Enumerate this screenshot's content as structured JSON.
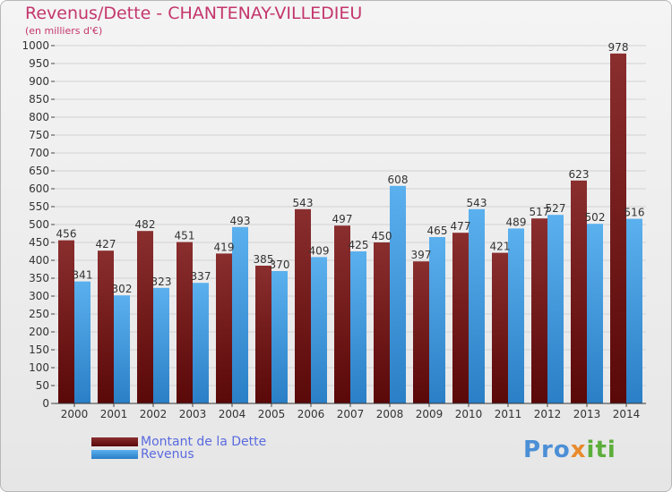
{
  "title": "Revenus/Dette - CHANTENAY-VILLEDIEU",
  "subtitle": "(en milliers d'€)",
  "logo": {
    "part1": "Pro",
    "part2": "x",
    "part3": "iti"
  },
  "colors": {
    "dette": "#7a1b1b",
    "revenus": "#4aa3e8",
    "title": "#c4366c",
    "legend_text": "#5a6adf"
  },
  "chart_data": {
    "type": "bar",
    "categories": [
      "2000",
      "2001",
      "2002",
      "2003",
      "2004",
      "2005",
      "2006",
      "2007",
      "2008",
      "2009",
      "2010",
      "2011",
      "2012",
      "2013",
      "2014"
    ],
    "series": [
      {
        "name": "Montant de la Dette",
        "values": [
          456,
          427,
          482,
          451,
          419,
          385,
          543,
          497,
          450,
          397,
          477,
          421,
          517,
          623,
          978
        ]
      },
      {
        "name": "Revenus",
        "values": [
          341,
          302,
          323,
          337,
          493,
          370,
          409,
          425,
          608,
          465,
          543,
          489,
          527,
          502,
          516
        ]
      }
    ],
    "ylim": [
      0,
      1000
    ],
    "yticks": [
      0,
      50,
      100,
      150,
      200,
      250,
      300,
      350,
      400,
      450,
      500,
      550,
      600,
      650,
      700,
      750,
      800,
      850,
      900,
      950,
      1000
    ],
    "grid": true,
    "legend_position": "bottom-left"
  }
}
